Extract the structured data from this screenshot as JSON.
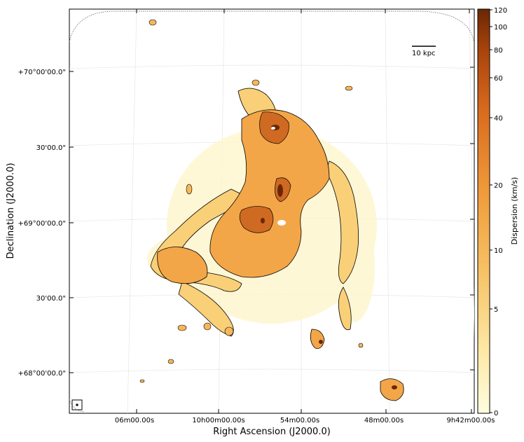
{
  "figure": {
    "xlabel": "Right Ascension (J2000.0)",
    "ylabel": "Declination (J2000.0)",
    "x_ticks": [
      "06m00.00s",
      "10h00m00.00s",
      "54m00.00s",
      "48m00.00s",
      "9h42m00.00s"
    ],
    "y_ticks": [
      "+70°00'00.0\"",
      "30'00.0\"",
      "+69°00'00.0\"",
      "30'00.0\"",
      "+68°00'00.0\""
    ],
    "scale_bar_label": "10 kpc"
  },
  "colorbar": {
    "label": "Dispersion (km/s)",
    "tick_labels": [
      "120",
      "100",
      "80",
      "60",
      "40",
      "20",
      "10",
      "5",
      "0"
    ],
    "colors": [
      "#fffde0",
      "#fde9a6",
      "#f7c266",
      "#ef9a3a",
      "#d96a1e",
      "#a8430c",
      "#6b2705"
    ]
  }
}
